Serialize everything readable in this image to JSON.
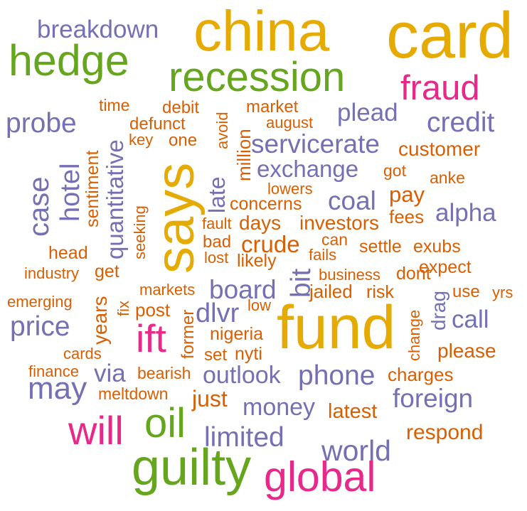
{
  "palette": {
    "gold": "#E6AB02",
    "green": "#66A61E",
    "pink": "#E7298A",
    "purple": "#7570B3",
    "orange": "#D95F02"
  },
  "words": [
    {
      "text": "china",
      "color": "gold"
    },
    {
      "text": "card",
      "color": "gold"
    },
    {
      "text": "hedge",
      "color": "green"
    },
    {
      "text": "breakdown",
      "color": "purple"
    },
    {
      "text": "recession",
      "color": "green"
    },
    {
      "text": "fraud",
      "color": "pink"
    },
    {
      "text": "probe",
      "color": "purple"
    },
    {
      "text": "time",
      "color": "orange"
    },
    {
      "text": "debit",
      "color": "orange"
    },
    {
      "text": "market",
      "color": "orange"
    },
    {
      "text": "plead",
      "color": "purple"
    },
    {
      "text": "credit",
      "color": "purple"
    },
    {
      "text": "defunct",
      "color": "orange"
    },
    {
      "text": "august",
      "color": "orange"
    },
    {
      "text": "avoid",
      "color": "orange"
    },
    {
      "text": "key",
      "color": "orange"
    },
    {
      "text": "one",
      "color": "orange"
    },
    {
      "text": "million",
      "color": "orange"
    },
    {
      "text": "servicerate",
      "color": "purple"
    },
    {
      "text": "customer",
      "color": "orange"
    },
    {
      "text": "quantitative",
      "color": "purple"
    },
    {
      "text": "sentiment",
      "color": "orange"
    },
    {
      "text": "says",
      "color": "gold"
    },
    {
      "text": "exchange",
      "color": "purple"
    },
    {
      "text": "got",
      "color": "orange"
    },
    {
      "text": "case",
      "color": "purple"
    },
    {
      "text": "hotel",
      "color": "purple"
    },
    {
      "text": "late",
      "color": "purple"
    },
    {
      "text": "anke",
      "color": "orange"
    },
    {
      "text": "lowers",
      "color": "orange"
    },
    {
      "text": "pay",
      "color": "orange"
    },
    {
      "text": "coal",
      "color": "purple"
    },
    {
      "text": "concerns",
      "color": "orange"
    },
    {
      "text": "alpha",
      "color": "purple"
    },
    {
      "text": "fees",
      "color": "orange"
    },
    {
      "text": "seeking",
      "color": "orange"
    },
    {
      "text": "fault",
      "color": "orange"
    },
    {
      "text": "days",
      "color": "orange"
    },
    {
      "text": "investors",
      "color": "orange"
    },
    {
      "text": "can",
      "color": "orange"
    },
    {
      "text": "bad",
      "color": "orange"
    },
    {
      "text": "crude",
      "color": "orange"
    },
    {
      "text": "settle",
      "color": "orange"
    },
    {
      "text": "exubs",
      "color": "orange"
    },
    {
      "text": "head",
      "color": "orange"
    },
    {
      "text": "lost",
      "color": "orange"
    },
    {
      "text": "fails",
      "color": "orange"
    },
    {
      "text": "likely",
      "color": "orange"
    },
    {
      "text": "industry",
      "color": "orange"
    },
    {
      "text": "get",
      "color": "orange"
    },
    {
      "text": "bit",
      "color": "purple"
    },
    {
      "text": "expect",
      "color": "orange"
    },
    {
      "text": "business",
      "color": "orange"
    },
    {
      "text": "dont",
      "color": "orange"
    },
    {
      "text": "emerging",
      "color": "orange"
    },
    {
      "text": "markets",
      "color": "orange"
    },
    {
      "text": "board",
      "color": "purple"
    },
    {
      "text": "jailed",
      "color": "orange"
    },
    {
      "text": "risk",
      "color": "orange"
    },
    {
      "text": "use",
      "color": "orange"
    },
    {
      "text": "yrs",
      "color": "orange"
    },
    {
      "text": "years",
      "color": "orange"
    },
    {
      "text": "fix",
      "color": "orange"
    },
    {
      "text": "post",
      "color": "orange"
    },
    {
      "text": "low",
      "color": "orange"
    },
    {
      "text": "drag",
      "color": "purple"
    },
    {
      "text": "price",
      "color": "purple"
    },
    {
      "text": "dlvr",
      "color": "purple"
    },
    {
      "text": "fund",
      "color": "gold"
    },
    {
      "text": "change",
      "color": "orange"
    },
    {
      "text": "call",
      "color": "purple"
    },
    {
      "text": "ift",
      "color": "pink"
    },
    {
      "text": "former",
      "color": "orange"
    },
    {
      "text": "nigeria",
      "color": "orange"
    },
    {
      "text": "cards",
      "color": "orange"
    },
    {
      "text": "set",
      "color": "orange"
    },
    {
      "text": "nyti",
      "color": "orange"
    },
    {
      "text": "please",
      "color": "orange"
    },
    {
      "text": "finance",
      "color": "orange"
    },
    {
      "text": "via",
      "color": "purple"
    },
    {
      "text": "bearish",
      "color": "orange"
    },
    {
      "text": "outlook",
      "color": "purple"
    },
    {
      "text": "phone",
      "color": "purple"
    },
    {
      "text": "charges",
      "color": "orange"
    },
    {
      "text": "may",
      "color": "purple"
    },
    {
      "text": "meltdown",
      "color": "orange"
    },
    {
      "text": "just",
      "color": "orange"
    },
    {
      "text": "foreign",
      "color": "purple"
    },
    {
      "text": "money",
      "color": "purple"
    },
    {
      "text": "latest",
      "color": "orange"
    },
    {
      "text": "will",
      "color": "pink"
    },
    {
      "text": "oil",
      "color": "green"
    },
    {
      "text": "limited",
      "color": "purple"
    },
    {
      "text": "respond",
      "color": "orange"
    },
    {
      "text": "world",
      "color": "purple"
    },
    {
      "text": "guilty",
      "color": "green"
    },
    {
      "text": "global",
      "color": "pink"
    }
  ]
}
